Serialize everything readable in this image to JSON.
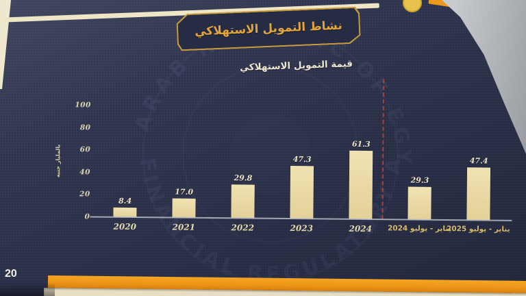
{
  "page": {
    "header_title": "نشاط التمويل الاستهلاكي",
    "page_number": "20",
    "watermark_top": "ARAB REPUBLIC OF EGYPT",
    "watermark_bottom": "FINANCIAL REGULATORY AUTHORITY"
  },
  "chart_data": {
    "type": "bar",
    "title": "قيمة التمويل الاستهلاكي",
    "xlabel": "",
    "ylabel": "بالمليار جنيه",
    "ylim": [
      0,
      100
    ],
    "yticks": [
      "0",
      "20",
      "40",
      "60",
      "80",
      "100"
    ],
    "grid": false,
    "legend": false,
    "categories": [
      "2020",
      "2021",
      "2022",
      "2023",
      "2024",
      "يناير - يوليو 2024",
      "يناير - يوليو 2025"
    ],
    "values": [
      8.4,
      17.0,
      29.8,
      47.3,
      61.3,
      29.3,
      47.4
    ],
    "value_labels": [
      "8.4",
      "17.0",
      "29.8",
      "47.3",
      "61.3",
      "29.3",
      "47.4"
    ],
    "period_category_start_index": 5,
    "separator_after_index": 4
  },
  "colors": {
    "page_navy": "#2f354f",
    "accent_gold": "#e2a53e",
    "bar_fill": "#ecdcaa",
    "orange_band": "#ec9417",
    "separator_red": "#b5453c",
    "axis_line": "#b9bdc7"
  }
}
